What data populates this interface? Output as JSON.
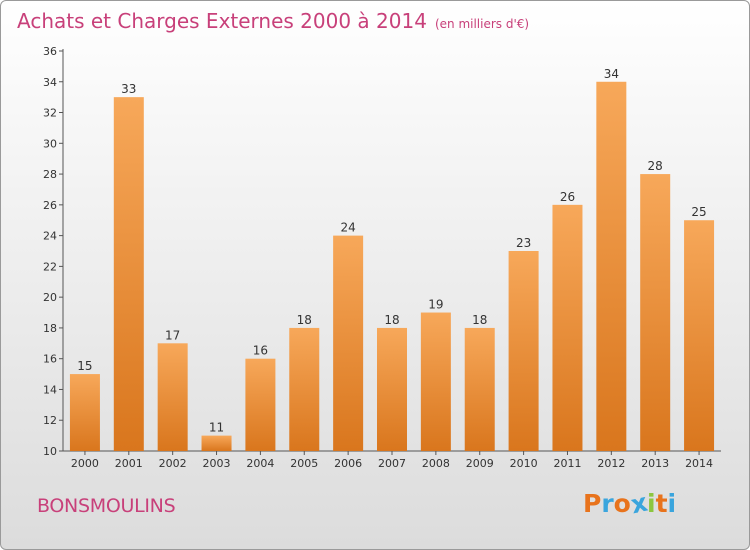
{
  "title": "Achats et Charges Externes 2000 à 2014",
  "subtitle": "(en milliers d'€)",
  "place": "BONSMOULINS",
  "logo": {
    "letters": [
      "P",
      "r",
      "o",
      "x",
      "i",
      "t",
      "i"
    ],
    "colors": [
      "#e8731c",
      "#3aa5dd",
      "#e8731c",
      "#3aa5dd",
      "#8cc63f",
      "#e8731c",
      "#3aa5dd"
    ]
  },
  "colors": {
    "title": "#c8407a",
    "bar_top": "#f7a85a",
    "bar_bottom": "#d9761d"
  },
  "chart_data": {
    "type": "bar",
    "title": "Achats et Charges Externes 2000 à 2014",
    "subtitle": "(en milliers d'€)",
    "categories": [
      "2000",
      "2001",
      "2002",
      "2003",
      "2004",
      "2005",
      "2006",
      "2007",
      "2008",
      "2009",
      "2010",
      "2011",
      "2012",
      "2013",
      "2014"
    ],
    "values": [
      15,
      33,
      17,
      11,
      16,
      18,
      24,
      18,
      19,
      18,
      23,
      26,
      34,
      28,
      25
    ],
    "ylim": [
      10,
      36
    ],
    "yticks": [
      "10",
      "12",
      "14",
      "16",
      "18",
      "20",
      "22",
      "24",
      "26",
      "28",
      "30",
      "32",
      "34",
      "36"
    ],
    "grid": false,
    "data_labels": true
  }
}
